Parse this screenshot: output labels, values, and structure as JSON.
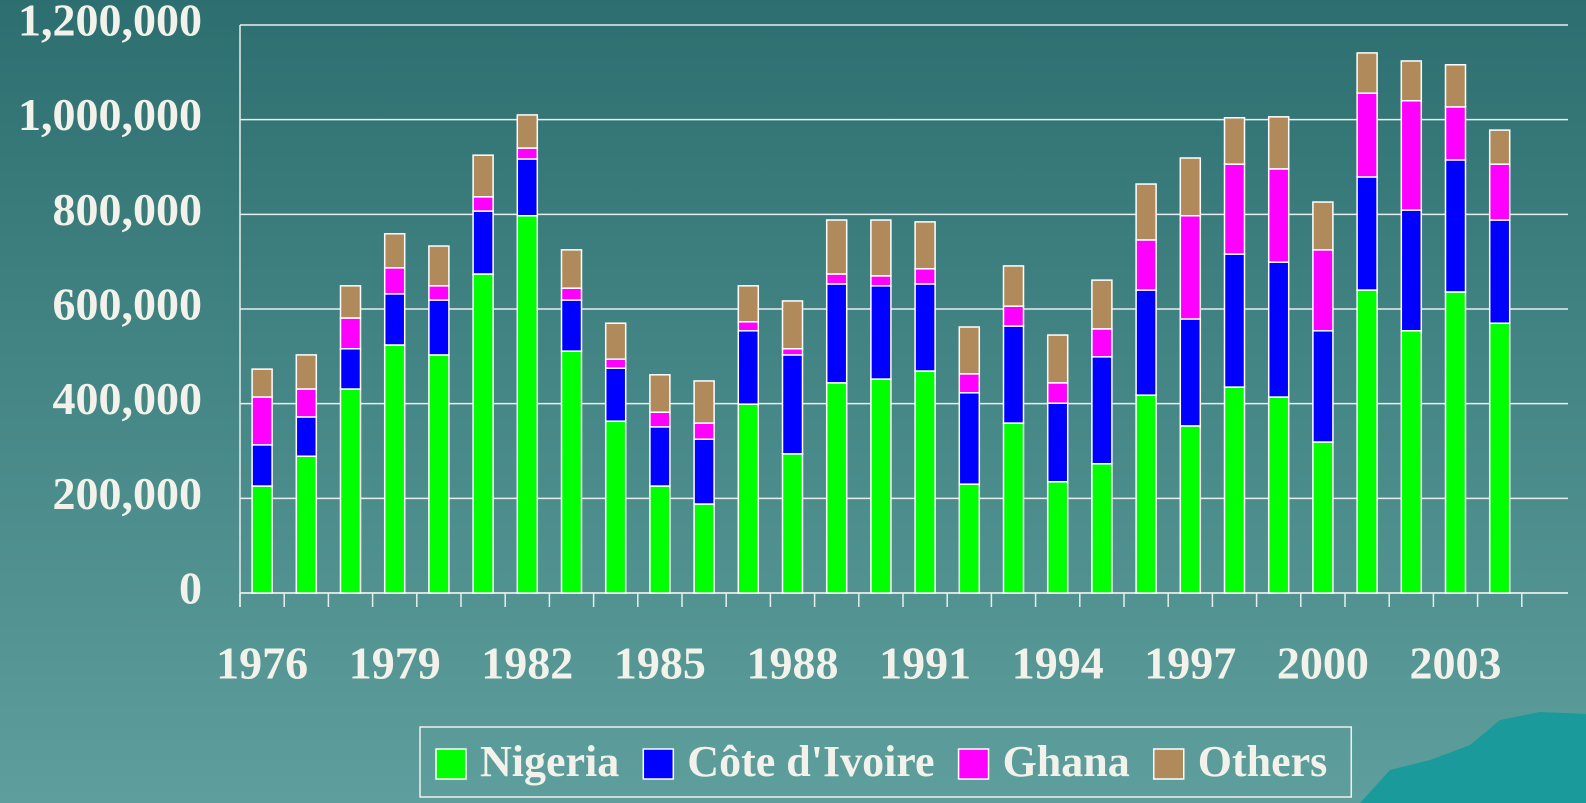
{
  "chart_data": {
    "type": "stacked_bar",
    "categories": [
      "1976",
      null,
      null,
      "1979",
      null,
      null,
      "1982",
      null,
      null,
      "1985",
      null,
      null,
      "1988",
      null,
      null,
      "1991",
      null,
      null,
      "1994",
      null,
      null,
      "1997",
      null,
      null,
      "2000",
      null,
      null,
      "2003",
      null
    ],
    "series": [
      {
        "name": "Nigeria",
        "color": "#00ff00",
        "values": [
          226000,
          289000,
          431000,
          524000,
          503000,
          674000,
          797000,
          511000,
          363000,
          226000,
          188000,
          399000,
          294000,
          444000,
          452000,
          469000,
          230000,
          359000,
          235000,
          273000,
          418000,
          353000,
          435000,
          414000,
          319000,
          640000,
          554000,
          636000,
          570000
        ]
      },
      {
        "name": "Côte d'Ivoire",
        "color": "#0000ff",
        "values": [
          87000,
          83000,
          85000,
          108000,
          116000,
          133000,
          120000,
          108000,
          112000,
          125000,
          137000,
          155000,
          209000,
          209000,
          197000,
          184000,
          193000,
          205000,
          166000,
          226000,
          222000,
          226000,
          281000,
          285000,
          235000,
          239000,
          255000,
          279000,
          218000
        ]
      },
      {
        "name": "Ghana",
        "color": "#ff00ff",
        "values": [
          101000,
          59000,
          65000,
          55000,
          30000,
          30000,
          23000,
          25000,
          19000,
          31000,
          34000,
          19000,
          13000,
          21000,
          21000,
          32000,
          40000,
          42000,
          43000,
          59000,
          106000,
          218000,
          190000,
          197000,
          171000,
          177000,
          231000,
          112000,
          118000
        ]
      },
      {
        "name": "Others",
        "color": "#b08a5a",
        "values": [
          59000,
          72000,
          68000,
          72000,
          84000,
          88000,
          70000,
          81000,
          76000,
          79000,
          89000,
          76000,
          101000,
          114000,
          118000,
          99000,
          99000,
          85000,
          101000,
          103000,
          118000,
          122000,
          98000,
          110000,
          101000,
          85000,
          84000,
          89000,
          72000
        ]
      }
    ],
    "ylim": [
      0,
      1200000
    ],
    "yticks": [
      0,
      {
        "value": 200000,
        "label": "200,000"
      },
      {
        "value": 400000,
        "label": "400,000"
      },
      {
        "value": 600000,
        "label": "600,000"
      },
      {
        "value": 800000,
        "label": "800,000"
      },
      {
        "value": 1000000,
        "label": "1,000,000"
      },
      {
        "value": 1200000,
        "label": "1,200,000"
      }
    ],
    "grid": true,
    "legend": "bottom"
  }
}
